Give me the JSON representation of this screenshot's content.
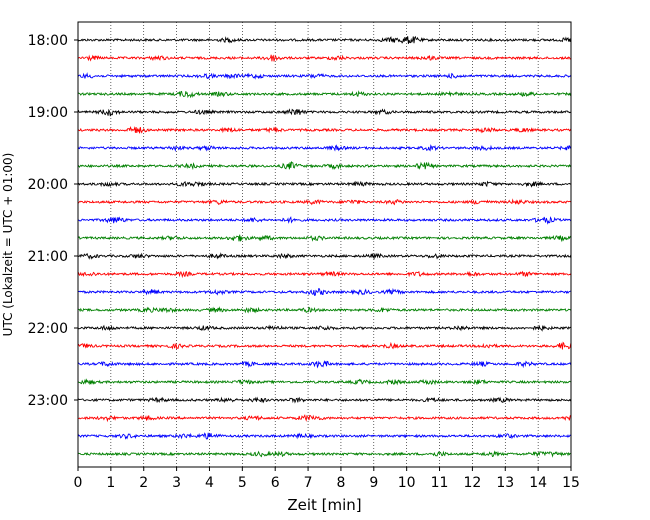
{
  "chart_data": {
    "type": "line",
    "title": "",
    "xlabel": "Zeit  [min]",
    "ylabel": "UTC (Lokalzeit = UTC + 01:00)",
    "xlim": [
      0,
      15
    ],
    "x_ticks": [
      0,
      1,
      2,
      3,
      4,
      5,
      6,
      7,
      8,
      9,
      10,
      11,
      12,
      13,
      14,
      15
    ],
    "y_tick_labels": [
      "18:00",
      "19:00",
      "20:00",
      "21:00",
      "22:00",
      "23:00"
    ],
    "grid": "vertical dotted",
    "series_colors": [
      "#000000",
      "#ff0000",
      "#0000ff",
      "#008000"
    ],
    "series": [
      {
        "time": "18:00",
        "color": "#000000"
      },
      {
        "time": "18:15",
        "color": "#ff0000"
      },
      {
        "time": "18:30",
        "color": "#0000ff"
      },
      {
        "time": "18:45",
        "color": "#008000"
      },
      {
        "time": "19:00",
        "color": "#000000"
      },
      {
        "time": "19:15",
        "color": "#ff0000"
      },
      {
        "time": "19:30",
        "color": "#0000ff"
      },
      {
        "time": "19:45",
        "color": "#008000"
      },
      {
        "time": "20:00",
        "color": "#000000"
      },
      {
        "time": "20:15",
        "color": "#ff0000"
      },
      {
        "time": "20:30",
        "color": "#0000ff"
      },
      {
        "time": "20:45",
        "color": "#008000"
      },
      {
        "time": "21:00",
        "color": "#000000"
      },
      {
        "time": "21:15",
        "color": "#ff0000"
      },
      {
        "time": "21:30",
        "color": "#0000ff"
      },
      {
        "time": "21:45",
        "color": "#008000"
      },
      {
        "time": "22:00",
        "color": "#000000"
      },
      {
        "time": "22:15",
        "color": "#ff0000"
      },
      {
        "time": "22:30",
        "color": "#0000ff"
      },
      {
        "time": "22:45",
        "color": "#008000"
      },
      {
        "time": "23:00",
        "color": "#000000"
      },
      {
        "time": "23:15",
        "color": "#ff0000"
      },
      {
        "time": "23:30",
        "color": "#0000ff"
      },
      {
        "time": "23:45",
        "color": "#008000"
      }
    ]
  }
}
